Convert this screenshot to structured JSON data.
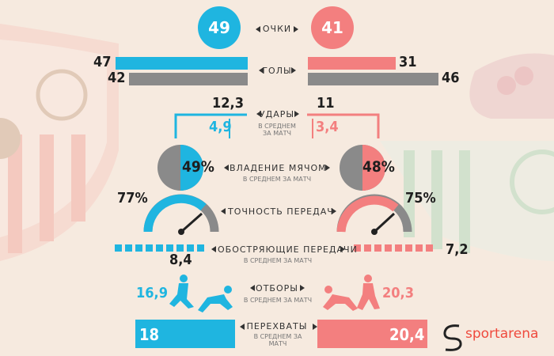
{
  "colors": {
    "home": "#1fb5e0",
    "away": "#f37f7f",
    "grey": "#8a8a8a",
    "dark": "#333333"
  },
  "points": {
    "label": "ОЧКИ",
    "home": "49",
    "away": "41"
  },
  "goals": {
    "label": "ГОЛЫ",
    "home_scored": "47",
    "home_conceded": "42",
    "away_scored": "31",
    "away_conceded": "46"
  },
  "shots": {
    "label": "УДАРЫ",
    "sub": "В СРЕДНЕМ ЗА МАТЧ",
    "home_total": "12,3",
    "home_on_target": "4,9",
    "away_total": "11",
    "away_on_target": "3,4"
  },
  "possession": {
    "label": "ВЛАДЕНИЕ МЯЧОМ",
    "sub": "В СРЕДНЕМ ЗА МАТЧ",
    "home": "49%",
    "away": "48%"
  },
  "passing": {
    "label": "ТОЧНОСТЬ ПЕРЕДАЧ",
    "home": "77%",
    "away": "75%"
  },
  "key_passes": {
    "label": "ОБОСТРЯЮЩИЕ ПЕРЕДАЧИ",
    "sub": "В СРЕДНЕМ ЗА МАТЧ",
    "home": "8,4",
    "away": "7,2"
  },
  "tackles": {
    "label": "ОТБОРЫ",
    "sub": "В СРЕДНЕМ ЗА МАТЧ",
    "home": "16,9",
    "away": "20,3"
  },
  "interceptions": {
    "label": "ПЕРЕХВАТЫ",
    "sub": "В СРЕДНЕМ ЗА МАТЧ",
    "home": "18",
    "away": "20,4"
  },
  "brand": {
    "name": "sportarena"
  },
  "chart_data": {
    "type": "table",
    "series": [
      {
        "values": [
          49,
          47,
          42,
          12.3,
          4.9,
          49,
          77,
          8.4,
          16.9,
          18
        ]
      },
      {
        "values": [
          41,
          31,
          46,
          11,
          3.4,
          48,
          75,
          7.2,
          20.3,
          20.4
        ]
      }
    ],
    "categories": [
      "ОЧКИ",
      "ГОЛЫ (забито)",
      "ГОЛЫ (пропущено)",
      "УДАРЫ",
      "УДАРЫ (в створ)",
      "ВЛАДЕНИЕ МЯЧОМ",
      "ТОЧНОСТЬ ПЕРЕДАЧ",
      "ОБОСТРЯЮЩИЕ ПЕРЕДАЧИ",
      "ОТБОРЫ",
      "ПЕРЕХВАТЫ"
    ]
  }
}
